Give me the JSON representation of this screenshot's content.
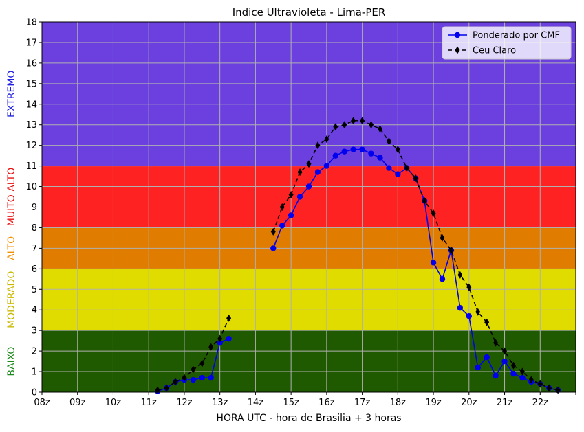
{
  "chart_data": {
    "type": "line",
    "title": "Indice Ultravioleta - Lima-PER",
    "xlabel": "HORA UTC - hora de Brasilia + 3 horas",
    "ylabel": "",
    "xlim": [
      8,
      23
    ],
    "ylim": [
      0,
      18
    ],
    "grid": true,
    "legend_position": "top-right",
    "x_tick_values": [
      8,
      9,
      10,
      11,
      12,
      13,
      14,
      15,
      16,
      17,
      18,
      19,
      20,
      21,
      22,
      23
    ],
    "x_tick_labels": [
      "08z",
      "09z",
      "10z",
      "11z",
      "12z",
      "13z",
      "14z",
      "15z",
      "16z",
      "17z",
      "18z",
      "19z",
      "20z",
      "21z",
      "22z",
      ""
    ],
    "y_ticks": [
      0,
      1,
      2,
      3,
      4,
      5,
      6,
      7,
      8,
      9,
      10,
      11,
      12,
      13,
      14,
      15,
      16,
      17,
      18
    ],
    "bands": [
      {
        "label": "BAIXO",
        "from": 0,
        "to": 3,
        "color": "#1f5a00",
        "label_color": "#1f8a1f"
      },
      {
        "label": "MODERADO",
        "from": 3,
        "to": 6,
        "color": "#e0dc00",
        "label_color": "#c9b800"
      },
      {
        "label": "ALTO",
        "from": 6,
        "to": 8,
        "color": "#e07c00",
        "label_color": "#f09000"
      },
      {
        "label": "MUITO ALTO",
        "from": 8,
        "to": 11,
        "color": "#ff2222",
        "label_color": "#e81010"
      },
      {
        "label": "EXTREMO",
        "from": 11,
        "to": 18,
        "color": "#6b40df",
        "label_color": "#2020e0"
      }
    ],
    "series": [
      {
        "name": "Ponderado por CMF",
        "color": "#0000ee",
        "style": "solid",
        "marker": "circle",
        "segments": [
          {
            "x": [
              11.25,
              11.5,
              11.75,
              12.0,
              12.25,
              12.5,
              12.75,
              13.0,
              13.25
            ],
            "y": [
              0.05,
              0.2,
              0.5,
              0.6,
              0.6,
              0.7,
              0.7,
              2.4,
              2.6
            ]
          },
          {
            "x": [
              14.5,
              14.75,
              15.0,
              15.25,
              15.5,
              15.75,
              16.0,
              16.25,
              16.5,
              16.75,
              17.0,
              17.25,
              17.5,
              17.75,
              18.0,
              18.25,
              18.5,
              18.75,
              19.0,
              19.25,
              19.5,
              19.75,
              20.0,
              20.25,
              20.5,
              20.75,
              21.0,
              21.25,
              21.5,
              21.75,
              22.0,
              22.25,
              22.5
            ],
            "y": [
              7.0,
              8.1,
              8.6,
              9.5,
              10.0,
              10.7,
              11.0,
              11.5,
              11.7,
              11.8,
              11.8,
              11.6,
              11.4,
              10.9,
              10.6,
              10.9,
              10.4,
              9.3,
              6.3,
              5.5,
              6.9,
              4.1,
              3.7,
              1.2,
              1.7,
              0.8,
              1.5,
              0.9,
              0.7,
              0.5,
              0.4,
              0.2,
              0.1
            ]
          }
        ]
      },
      {
        "name": "Ceu Claro",
        "color": "#000000",
        "style": "dashed",
        "marker": "diamond",
        "segments": [
          {
            "x": [
              11.25,
              11.5,
              11.75,
              12.0,
              12.25,
              12.5,
              12.75,
              13.0,
              13.25
            ],
            "y": [
              0.1,
              0.2,
              0.5,
              0.7,
              1.1,
              1.4,
              2.2,
              2.6,
              3.6
            ]
          },
          {
            "x": [
              14.5,
              14.75,
              15.0,
              15.25,
              15.5,
              15.75,
              16.0,
              16.25,
              16.5,
              16.75,
              17.0,
              17.25,
              17.5,
              17.75,
              18.0,
              18.25,
              18.5,
              18.75,
              19.0,
              19.25,
              19.5,
              19.75,
              20.0,
              20.25,
              20.5,
              20.75,
              21.0,
              21.25,
              21.5,
              21.75,
              22.0,
              22.25,
              22.5
            ],
            "y": [
              7.8,
              9.0,
              9.6,
              10.7,
              11.1,
              12.0,
              12.3,
              12.9,
              13.0,
              13.2,
              13.2,
              13.0,
              12.8,
              12.2,
              11.8,
              10.9,
              10.4,
              9.3,
              8.7,
              7.5,
              6.9,
              5.7,
              5.1,
              3.9,
              3.4,
              2.4,
              2.0,
              1.3,
              1.0,
              0.6,
              0.4,
              0.2,
              0.1
            ]
          }
        ]
      }
    ]
  }
}
